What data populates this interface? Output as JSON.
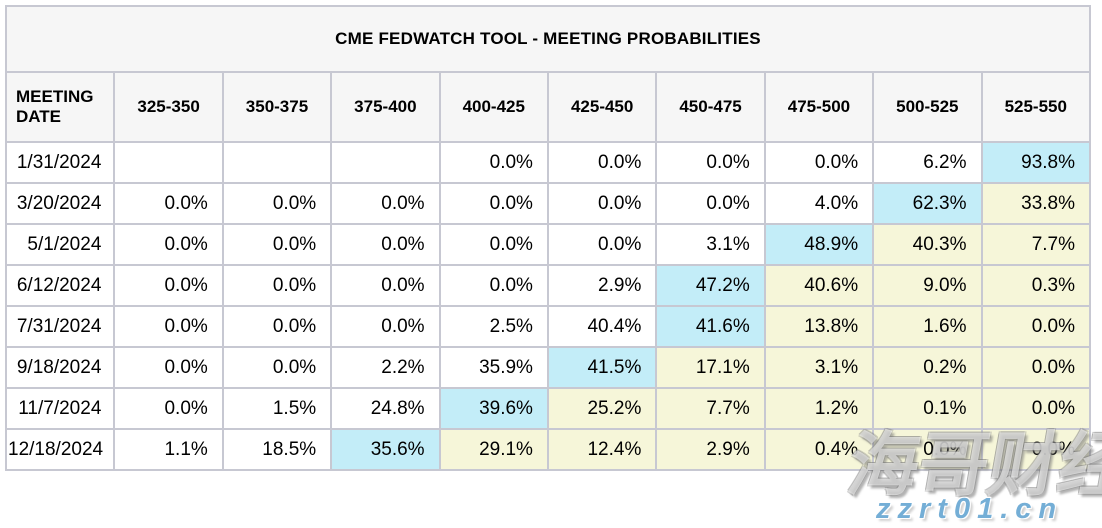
{
  "title": "CME FEDWATCH TOOL - MEETING PROBABILITIES",
  "table": {
    "date_header": "MEETING DATE",
    "range_headers": [
      "325-350",
      "350-375",
      "375-400",
      "400-425",
      "425-450",
      "450-475",
      "475-500",
      "500-525",
      "525-550"
    ],
    "rows": [
      {
        "date": "1/31/2024",
        "values": [
          "",
          "",
          "",
          "0.0%",
          "0.0%",
          "0.0%",
          "0.0%",
          "6.2%",
          "93.8%"
        ],
        "styles": [
          "w",
          "w",
          "w",
          "w",
          "w",
          "w",
          "w",
          "w",
          "c"
        ]
      },
      {
        "date": "3/20/2024",
        "values": [
          "0.0%",
          "0.0%",
          "0.0%",
          "0.0%",
          "0.0%",
          "0.0%",
          "4.0%",
          "62.3%",
          "33.8%"
        ],
        "styles": [
          "w",
          "w",
          "w",
          "w",
          "w",
          "w",
          "w",
          "c",
          "y"
        ]
      },
      {
        "date": "5/1/2024",
        "values": [
          "0.0%",
          "0.0%",
          "0.0%",
          "0.0%",
          "0.0%",
          "3.1%",
          "48.9%",
          "40.3%",
          "7.7%"
        ],
        "styles": [
          "w",
          "w",
          "w",
          "w",
          "w",
          "w",
          "c",
          "y",
          "y"
        ]
      },
      {
        "date": "6/12/2024",
        "values": [
          "0.0%",
          "0.0%",
          "0.0%",
          "0.0%",
          "2.9%",
          "47.2%",
          "40.6%",
          "9.0%",
          "0.3%"
        ],
        "styles": [
          "w",
          "w",
          "w",
          "w",
          "w",
          "c",
          "y",
          "y",
          "y"
        ]
      },
      {
        "date": "7/31/2024",
        "values": [
          "0.0%",
          "0.0%",
          "0.0%",
          "2.5%",
          "40.4%",
          "41.6%",
          "13.8%",
          "1.6%",
          "0.0%"
        ],
        "styles": [
          "w",
          "w",
          "w",
          "w",
          "w",
          "c",
          "y",
          "y",
          "y"
        ]
      },
      {
        "date": "9/18/2024",
        "values": [
          "0.0%",
          "0.0%",
          "2.2%",
          "35.9%",
          "41.5%",
          "17.1%",
          "3.1%",
          "0.2%",
          "0.0%"
        ],
        "styles": [
          "w",
          "w",
          "w",
          "w",
          "c",
          "y",
          "y",
          "y",
          "y"
        ]
      },
      {
        "date": "11/7/2024",
        "values": [
          "0.0%",
          "1.5%",
          "24.8%",
          "39.6%",
          "25.2%",
          "7.7%",
          "1.2%",
          "0.1%",
          "0.0%"
        ],
        "styles": [
          "w",
          "w",
          "w",
          "c",
          "y",
          "y",
          "y",
          "y",
          "y"
        ]
      },
      {
        "date": "12/18/2024",
        "values": [
          "1.1%",
          "18.5%",
          "35.6%",
          "29.1%",
          "12.4%",
          "2.9%",
          "0.4%",
          "0.0%",
          "0.0%"
        ],
        "styles": [
          "w",
          "w",
          "c",
          "y",
          "y",
          "y",
          "y",
          "y",
          "y"
        ]
      }
    ]
  },
  "watermark": {
    "line1": "海哥财经",
    "line2": "zzrt01.cn"
  },
  "colors": {
    "highlight_blue": "#c3edf8",
    "highlight_yellow": "#f6f6d9",
    "header_bg": "#f6f6f6",
    "border": "#c7c8d2",
    "watermark_blue": "#74aed6"
  }
}
